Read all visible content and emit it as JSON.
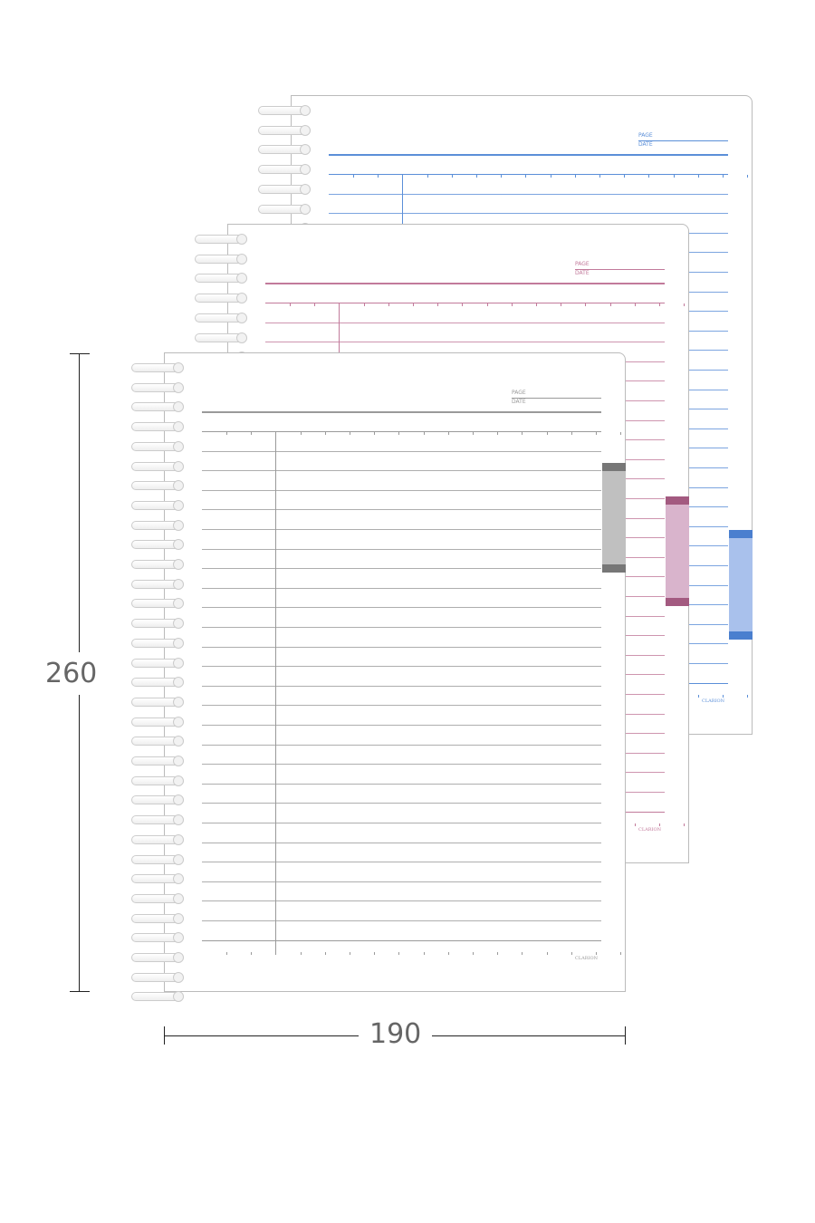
{
  "notebooks": [
    {
      "color": "blue",
      "line": "#5b8fd8",
      "tab_edge": "#4a7fcf",
      "tab_fill": "#a9c1ec",
      "page_label": "PAGE",
      "date_label": "DATE",
      "brand": "CLARION"
    },
    {
      "color": "pink",
      "line": "#c27a9b",
      "tab_edge": "#a35a80",
      "tab_fill": "#d9b4cc",
      "page_label": "PAGE",
      "date_label": "DATE",
      "brand": "CLARION"
    },
    {
      "color": "gray",
      "line": "#9a9a9a",
      "tab_edge": "#777777",
      "tab_fill": "#c0c0c0",
      "page_label": "PAGE",
      "date_label": "DATE",
      "brand": "CLARION"
    }
  ],
  "dimensions": {
    "height": "260",
    "width": "190"
  }
}
